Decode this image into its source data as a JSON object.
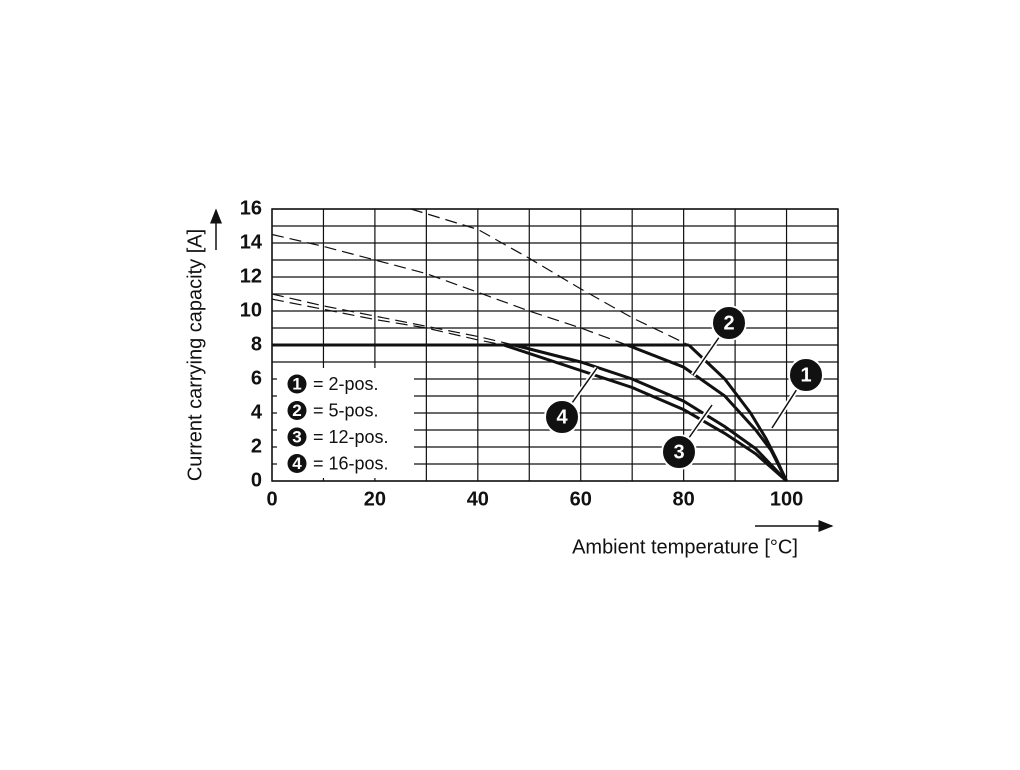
{
  "chart_data": {
    "type": "line",
    "ylabel": "Current carrying capacity [A]",
    "xlabel": "Ambient temperature [°C]",
    "xlim": [
      0,
      110
    ],
    "ylim": [
      0,
      16
    ],
    "xticks": [
      0,
      20,
      40,
      60,
      80,
      100
    ],
    "yticks": [
      0,
      2,
      4,
      6,
      8,
      10,
      12,
      14,
      16
    ],
    "xgrid": [
      0,
      10,
      20,
      30,
      40,
      50,
      60,
      70,
      80,
      90,
      100,
      110
    ],
    "ygrid": [
      0,
      1,
      2,
      3,
      4,
      5,
      6,
      7,
      8,
      9,
      10,
      11,
      12,
      13,
      14,
      15,
      16
    ],
    "grid": true,
    "rated_line": {
      "x": [
        0,
        81
      ],
      "values": [
        8,
        8
      ]
    },
    "series": [
      {
        "marker": "1",
        "name": "= 2-pos.",
        "color": "#111111",
        "x": [
          27,
          40,
          50,
          60,
          70,
          81,
          88,
          93,
          96,
          98,
          100
        ],
        "values": [
          16,
          14.8,
          13.1,
          11.3,
          9.6,
          8,
          6,
          4,
          2.5,
          1.3,
          0
        ]
      },
      {
        "marker": "2",
        "name": "= 5-pos.",
        "color": "#111111",
        "x": [
          0,
          10,
          20,
          30,
          40,
          50,
          60,
          69,
          80,
          88,
          94,
          97,
          100
        ],
        "values": [
          14.5,
          13.8,
          13,
          12.2,
          11.1,
          10,
          9,
          8,
          6.7,
          5,
          3,
          1.8,
          0
        ]
      },
      {
        "marker": "3",
        "name": "= 12-pos.",
        "color": "#111111",
        "x": [
          0,
          10,
          20,
          30,
          40,
          47,
          60,
          70,
          80,
          88,
          94,
          100
        ],
        "values": [
          11,
          10.3,
          9.7,
          9.1,
          8.5,
          8,
          7,
          6,
          4.7,
          3.2,
          1.9,
          0
        ]
      },
      {
        "marker": "4",
        "name": "= 16-pos.",
        "color": "#111111",
        "x": [
          0,
          10,
          20,
          30,
          40,
          45,
          60,
          70,
          80,
          88,
          94,
          100
        ],
        "values": [
          10.7,
          10.1,
          9.5,
          9,
          8.3,
          8,
          6.5,
          5.5,
          4.2,
          2.8,
          1.6,
          0
        ]
      }
    ]
  }
}
